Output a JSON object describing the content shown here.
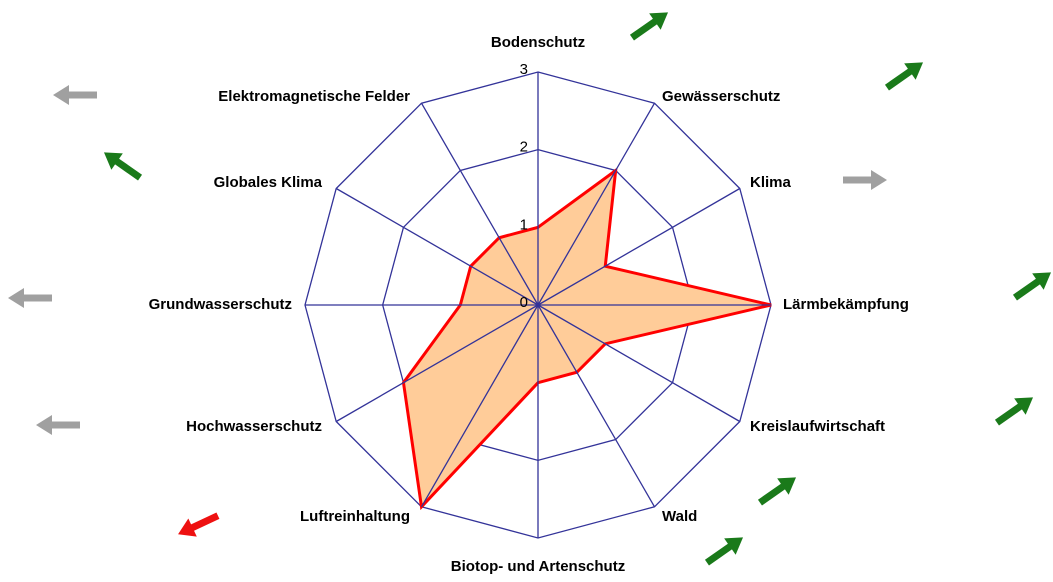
{
  "chart_data": {
    "type": "radar",
    "categories": [
      "Bodenschutz",
      "Gewässerschutz",
      "Klima",
      "Lärmbekämpfung",
      "Kreislaufwirtschaft",
      "Wald",
      "Biotop- und Artenschutz",
      "Luftreinhaltung",
      "Hochwasserschutz",
      "Grundwasserschutz",
      "Globales Klima",
      "Elektromagnetische Felder"
    ],
    "values": [
      1,
      2,
      1,
      3,
      1,
      1,
      1,
      3,
      2,
      1,
      1,
      1
    ],
    "color": "#ff0000",
    "fill": "#ffcc99",
    "grid_color": "#333399",
    "ylim": [
      0,
      3
    ],
    "yticks": [
      0,
      1,
      2,
      3
    ],
    "grid": true
  }
}
